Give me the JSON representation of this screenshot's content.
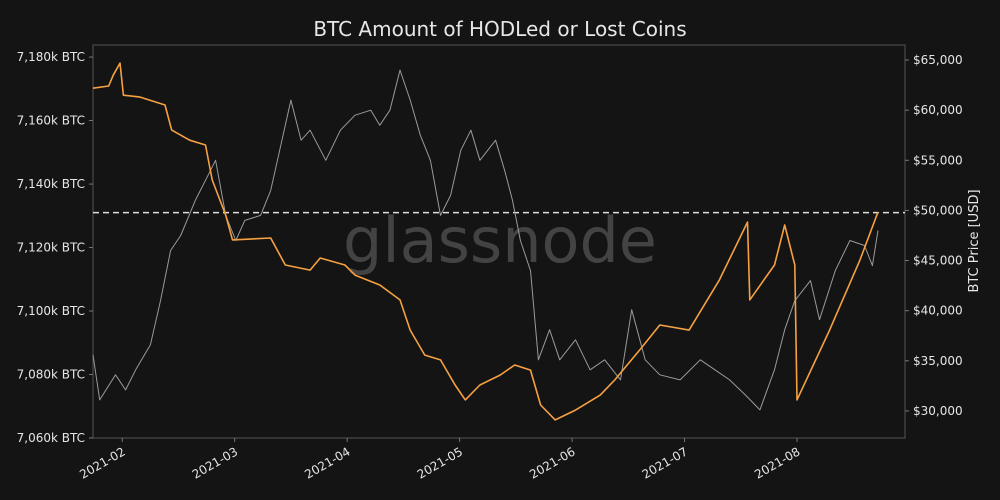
{
  "chart_data": {
    "type": "line",
    "title": "BTC Amount of HODLed or Lost Coins",
    "watermark": "glassnode",
    "y2label": "BTC Price [USD]",
    "xlim": [
      1.74,
      8.96
    ],
    "xticks": [
      {
        "value": 2,
        "label": "2021-02"
      },
      {
        "value": 3,
        "label": "2021-03"
      },
      {
        "value": 4,
        "label": "2021-04"
      },
      {
        "value": 5,
        "label": "2021-05"
      },
      {
        "value": 6,
        "label": "2021-06"
      },
      {
        "value": 7,
        "label": "2021-07"
      },
      {
        "value": 8,
        "label": "2021-08"
      }
    ],
    "ylim": [
      7060,
      7183.8
    ],
    "yticks": [
      {
        "value": 7060,
        "label": "7,060k BTC"
      },
      {
        "value": 7080,
        "label": "7,080k BTC"
      },
      {
        "value": 7100,
        "label": "7,100k BTC"
      },
      {
        "value": 7120,
        "label": "7,120k BTC"
      },
      {
        "value": 7140,
        "label": "7,140k BTC"
      },
      {
        "value": 7160,
        "label": "7,160k BTC"
      },
      {
        "value": 7180,
        "label": "7,180k BTC"
      }
    ],
    "y2lim": [
      27300,
      66500
    ],
    "y2ticks": [
      {
        "value": 30000,
        "label": "$30,000"
      },
      {
        "value": 35000,
        "label": "$35,000"
      },
      {
        "value": 40000,
        "label": "$40,000"
      },
      {
        "value": 45000,
        "label": "$45,000"
      },
      {
        "value": 50000,
        "label": "$50,000"
      },
      {
        "value": 55000,
        "label": "$55,000"
      },
      {
        "value": 60000,
        "label": "$60,000"
      },
      {
        "value": 65000,
        "label": "$65,000"
      }
    ],
    "hline": 7131,
    "series": [
      {
        "color": "#9a9a9a",
        "axis": "y2",
        "x": [
          1.74,
          1.8,
          1.94,
          2.03,
          2.12,
          2.25,
          2.34,
          2.43,
          2.52,
          2.65,
          2.74,
          2.83,
          2.92,
          3.01,
          3.09,
          3.23,
          3.32,
          3.41,
          3.5,
          3.59,
          3.67,
          3.81,
          3.94,
          4.07,
          4.21,
          4.29,
          4.38,
          4.47,
          4.56,
          4.65,
          4.74,
          4.83,
          4.92,
          5.01,
          5.1,
          5.18,
          5.32,
          5.4,
          5.47,
          5.54,
          5.63,
          5.7,
          5.8,
          5.89,
          6.03,
          6.16,
          6.29,
          6.43,
          6.53,
          6.65,
          6.78,
          6.96,
          7.14,
          7.27,
          7.4,
          7.54,
          7.67,
          7.8,
          7.89,
          7.98,
          8.12,
          8.2,
          8.34,
          8.47,
          8.6,
          8.67,
          8.72
        ],
        "values": [
          35600,
          31100,
          33600,
          32100,
          34100,
          36600,
          41000,
          46000,
          47500,
          51000,
          53000,
          55000,
          49500,
          47000,
          49000,
          49500,
          52000,
          56500,
          61000,
          57000,
          58000,
          55000,
          58000,
          59500,
          60000,
          58500,
          60000,
          64000,
          61000,
          57500,
          55000,
          49500,
          51500,
          56000,
          58000,
          55000,
          57000,
          54000,
          51000,
          47000,
          44000,
          35100,
          38100,
          35100,
          37100,
          34100,
          35100,
          33100,
          40100,
          35100,
          33600,
          33100,
          35100,
          34100,
          33100,
          31600,
          30100,
          34100,
          38100,
          41000,
          43000,
          39100,
          44000,
          47000,
          46500,
          44500,
          48000
        ]
      },
      {
        "color": "#f5a142",
        "x": [
          1.74,
          1.88,
          1.92,
          1.98,
          2.01,
          2.16,
          2.38,
          2.44,
          2.6,
          2.74,
          2.8,
          2.92,
          2.98,
          3.32,
          3.45,
          3.67,
          3.76,
          3.98,
          4.07,
          4.29,
          4.47,
          4.56,
          4.69,
          4.83,
          4.96,
          5.05,
          5.18,
          5.36,
          5.49,
          5.63,
          5.72,
          5.85,
          6.03,
          6.25,
          6.38,
          6.6,
          6.78,
          7.04,
          7.31,
          7.56,
          7.58,
          7.8,
          7.89,
          7.98,
          8.0,
          8.29,
          8.56,
          8.72
        ],
        "values": [
          7170.2,
          7170.9,
          7174.3,
          7178.1,
          7168,
          7167.4,
          7164.9,
          7157,
          7153.8,
          7152.3,
          7141.3,
          7130.2,
          7122.4,
          7123,
          7114.5,
          7112.9,
          7116.7,
          7114.5,
          7111.3,
          7108.2,
          7103.5,
          7094,
          7086.1,
          7084.6,
          7076.7,
          7072,
          7076.7,
          7079.8,
          7083,
          7081.4,
          7070.4,
          7065.7,
          7068.8,
          7073.5,
          7078.3,
          7087.7,
          7095.6,
          7094,
          7109.8,
          7128,
          7103.5,
          7114.5,
          7127.1,
          7114.5,
          7072,
          7094,
          7116.1,
          7131.2
        ]
      }
    ]
  }
}
